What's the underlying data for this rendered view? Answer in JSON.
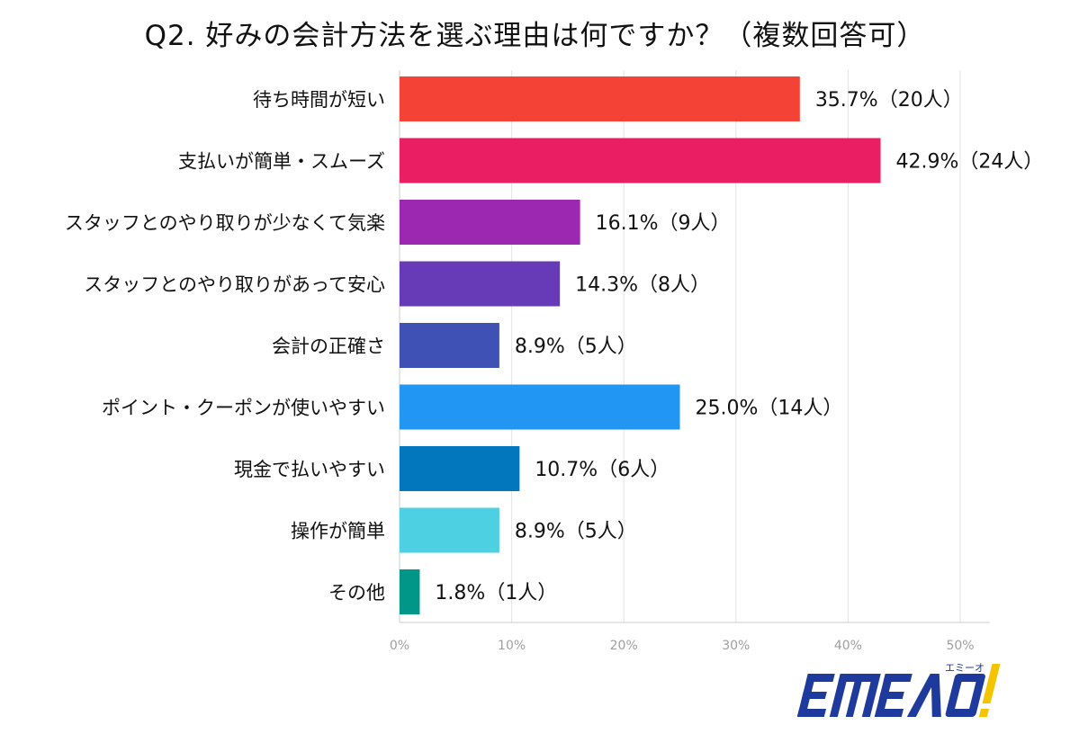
{
  "title": "Q2. 好みの会計方法を選ぶ理由は何ですか？（複数回答可）",
  "logo": {
    "text": "EMEAO!",
    "reading": "エミーオ",
    "color_primary": "#1e3a9c",
    "color_accent": "#f5c400"
  },
  "chart_data": {
    "type": "bar",
    "orientation": "horizontal",
    "categories": [
      "待ち時間が短い",
      "支払いが簡単・スムーズ",
      "スタッフとのやり取りが少なくて気楽",
      "スタッフとのやり取りがあって安心",
      "会計の正確さ",
      "ポイント・クーポンが使いやすい",
      "現金で払いやすい",
      "操作が簡単",
      "その他"
    ],
    "values": [
      35.7,
      42.9,
      16.1,
      14.3,
      8.9,
      25.0,
      10.7,
      8.9,
      1.8
    ],
    "data_labels": [
      "35.7%（20人）",
      "42.9%（24人）",
      "16.1%（9人）",
      "14.3%（8人）",
      "8.9%（5人）",
      "25.0%（14人）",
      "10.7%（6人）",
      "8.9%（5人）",
      "1.8%（1人）"
    ],
    "colors": [
      "#f44336",
      "#e91e63",
      "#9c27b0",
      "#673ab7",
      "#3f51b5",
      "#2196f3",
      "#0277bd",
      "#4dd0e1",
      "#009688"
    ],
    "xlim": [
      0,
      50
    ],
    "xticks": [
      0,
      10,
      20,
      30,
      40,
      50
    ],
    "xtick_labels": [
      "0%",
      "10%",
      "20%",
      "30%",
      "40%",
      "50%"
    ],
    "grid": true,
    "title": "Q2. 好みの会計方法を選ぶ理由は何ですか？（複数回答可）"
  }
}
